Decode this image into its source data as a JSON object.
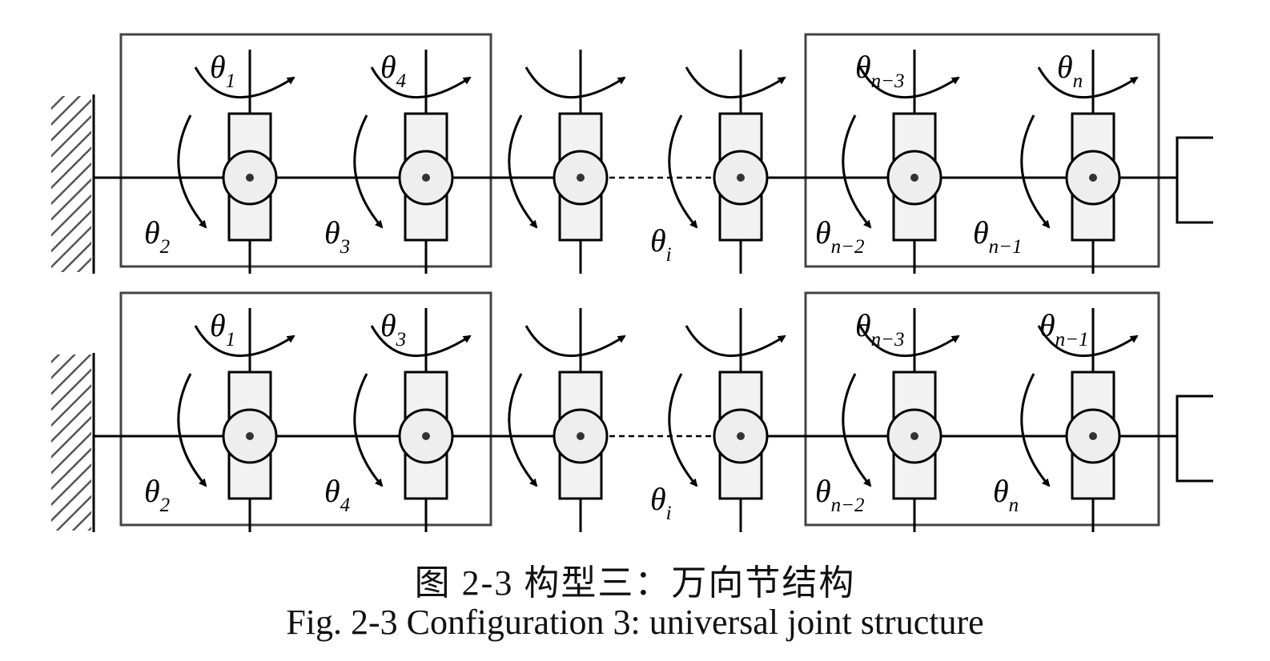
{
  "figure": {
    "caption_zh": "图  2-3 构型三：万向节结构",
    "caption_en": "Fig. 2-3 Configuration 3: universal joint structure"
  },
  "rows": [
    {
      "name": "row-1",
      "labels": {
        "j1_top": {
          "base": "θ",
          "sub": "1"
        },
        "j1_bottom": {
          "base": "θ",
          "sub": "2"
        },
        "j2_top": {
          "base": "θ",
          "sub": "4"
        },
        "j2_bottom": {
          "base": "θ",
          "sub": "3"
        },
        "mid": {
          "base": "θ",
          "sub": "i"
        },
        "j5_top": {
          "base": "θ",
          "sub": "n−3"
        },
        "j5_bottom": {
          "base": "θ",
          "sub": "n−2"
        },
        "j6_top": {
          "base": "θ",
          "sub": "n"
        },
        "j6_bottom": {
          "base": "θ",
          "sub": "n−1"
        }
      }
    },
    {
      "name": "row-2",
      "labels": {
        "j1_top": {
          "base": "θ",
          "sub": "1"
        },
        "j1_bottom": {
          "base": "θ",
          "sub": "2"
        },
        "j2_top": {
          "base": "θ",
          "sub": "3"
        },
        "j2_bottom": {
          "base": "θ",
          "sub": "4"
        },
        "mid": {
          "base": "θ",
          "sub": "i"
        },
        "j5_top": {
          "base": "θ",
          "sub": "n−3"
        },
        "j5_bottom": {
          "base": "θ",
          "sub": "n−2"
        },
        "j6_top": {
          "base": "θ",
          "sub": "n−1"
        },
        "j6_bottom": {
          "base": "θ",
          "sub": "n"
        }
      }
    }
  ]
}
